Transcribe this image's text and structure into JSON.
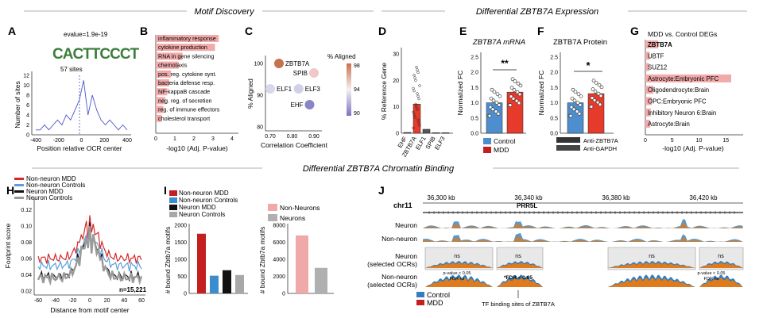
{
  "sections": {
    "motif": "Motif Discovery",
    "expression": "Differential ZBTB7A Expression",
    "binding": "Differential ZBTB7A Chromatin Binding"
  },
  "panels": [
    "A",
    "B",
    "C",
    "D",
    "E",
    "F",
    "G",
    "H",
    "I",
    "J"
  ],
  "panelA": {
    "evalue": "evalue=1.9e-19",
    "logo": "CACTTCCCT",
    "sites": "57 sites",
    "ylabel": "Number of sites",
    "xlabel": "Position relative OCR center",
    "xticks": [
      "-400",
      "-200",
      "0",
      "200",
      "400"
    ],
    "yticks": [
      "0",
      "2",
      "4",
      "6",
      "8",
      "10",
      "12"
    ],
    "curve": [
      1,
      1,
      2,
      1,
      2,
      3,
      2,
      4,
      3,
      5,
      7,
      11,
      4,
      8,
      5,
      3,
      2,
      3,
      2,
      1,
      2,
      1
    ]
  },
  "panelB": {
    "terms": [
      "inflammatory response",
      "cytokine production",
      "RNA in gene silencing",
      "chemotaxis",
      "pos. reg. cytokine synt.",
      "bacteria defense resp.",
      "NF-kappaB cascade",
      "neg. reg. of secretion",
      "reg. of immune effectors",
      "cholesterol transport"
    ],
    "values": [
      3.3,
      3.1,
      1.4,
      1.2,
      0.8,
      0.7,
      0.6,
      0.5,
      0.4,
      0.3
    ],
    "xticks": [
      "0",
      "1",
      "2",
      "3",
      "4"
    ],
    "xlabel": "-log10 (Adj. P-value)"
  },
  "panelC": {
    "title": "% Aligned",
    "ylabel": "% Aligned",
    "xlabel": "Correlation Coefficient",
    "xticks": [
      "0.70",
      "0.80",
      "0.90"
    ],
    "yticks": [
      "80",
      "90",
      "100"
    ],
    "cbar": [
      "98",
      "94",
      "90"
    ],
    "points": [
      {
        "label": "ZBTB7A",
        "x": 0.74,
        "y": 100,
        "color": "#c8714d"
      },
      {
        "label": "SPIB",
        "x": 0.9,
        "y": 97,
        "color": "#f0c8c8"
      },
      {
        "label": "ELF1",
        "x": 0.7,
        "y": 92,
        "color": "#d8d8ec"
      },
      {
        "label": "ELF3",
        "x": 0.83,
        "y": 92,
        "color": "#d0d0e8"
      },
      {
        "label": "EHF",
        "x": 0.88,
        "y": 87,
        "color": "#8a84c8"
      }
    ]
  },
  "panelD": {
    "ylabel": "% Reference Gene",
    "categories": [
      "EHF",
      "ZBTB7A",
      "ELF1",
      "SPIB",
      "ELF3"
    ],
    "values": [
      0.3,
      11,
      1.5,
      0.2,
      0.2
    ],
    "yticks": [
      "0",
      "10",
      "20",
      "30"
    ]
  },
  "panelE": {
    "title": "ZBTB7A mRNA",
    "ylabel": "Normalized FC",
    "sig": "**",
    "yticks": [
      "0.0",
      "0.5",
      "1.0",
      "1.5",
      "2.0",
      "2.5"
    ],
    "control": 1.0,
    "mdd": 1.35,
    "legend_control": "Control",
    "legend_mdd": "MDD"
  },
  "panelF": {
    "title": "ZBTB7A Protein",
    "ylabel": "Normalized FC",
    "sig": "*",
    "yticks": [
      "0.0",
      "0.5",
      "1.0",
      "1.5",
      "2.0",
      "2.5"
    ],
    "control": 1.0,
    "mdd": 1.3,
    "blot1": "Anti-ZBTB7A",
    "blot2": "Anti-GAPDH"
  },
  "panelG": {
    "title": "MDD vs. Control DEGs",
    "terms": [
      "ZBTB7A",
      "UBTF",
      "SUZ12",
      "Astrocyte:Embryonic PFC",
      "Oligodendrocyte:Brain",
      "OPC:Embryonic PFC",
      "Inhibitory Neuron 6:Brain",
      "Astrocyte:Brain"
    ],
    "values": [
      2.4,
      0.8,
      0.7,
      16,
      1.5,
      1.2,
      1.0,
      0.9
    ],
    "xticks": [
      "0",
      "5",
      "10",
      "15"
    ],
    "xlabel": "-log10 (Adj. P-value)"
  },
  "panelH": {
    "legend": [
      "Non-neuron MDD",
      "Non-neuron Controls",
      "Neuron MDD",
      "Neuron Controls"
    ],
    "colors": [
      "#d62828",
      "#5aa0d8",
      "#111111",
      "#9a9a9a"
    ],
    "ylabel": "Footprint score",
    "xlabel": "Distance from motif center",
    "xticks": [
      "-60",
      "-40",
      "-20",
      "0",
      "20",
      "40",
      "60"
    ],
    "yticks": [
      "0.02",
      "0.04",
      "0.06",
      "0.08",
      "0.10",
      "0.12"
    ],
    "n": "n=15,221"
  },
  "panelI": {
    "legend1": [
      "Non-neuron MDD",
      "Non-neuron Controls",
      "Neuron MDD",
      "Neuron Controls"
    ],
    "values1": [
      1750,
      520,
      680,
      540
    ],
    "colors1": [
      "#c41e1e",
      "#3a8ed0",
      "#111111",
      "#a8a8a8"
    ],
    "yticks1": [
      "0",
      "500",
      "1000",
      "1500",
      "2000"
    ],
    "ylabel1": "# bound Zbtb7a motifs",
    "legend2": [
      "Non-Neurons",
      "Neurons"
    ],
    "values2": [
      6800,
      3000
    ],
    "colors2": [
      "#f0a8a8",
      "#b0b0b0"
    ],
    "yticks2": [
      "0",
      "2000",
      "4000",
      "6000",
      "8000"
    ],
    "ylabel2": "# bound Zbtb7a motifs"
  },
  "panelJ": {
    "chrom": "chr11",
    "coords": [
      "36,300 kb",
      "36,340 kb",
      "36,380 kb",
      "36,420 kb"
    ],
    "gene": "PRR5L",
    "tracks": [
      "Neuron",
      "Non-neuron",
      "Neuron\n(selected OCRs)",
      "Non-neuron\n(selected OCRs)"
    ],
    "ns": "ns",
    "fdr_sig": "*FDR < 0.05",
    "pval1": "p-value < 0.05",
    "fdr1": "FDR ns",
    "pval2": "p-value < 0.05",
    "fdr2": "FDR ns",
    "legend_control": "Control",
    "legend_mdd": "MDD",
    "tf_label": "TF binding sites of ZBTB7A"
  }
}
